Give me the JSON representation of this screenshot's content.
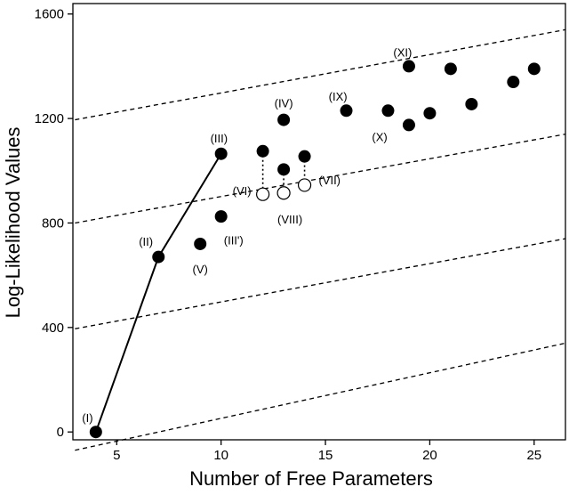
{
  "chart_data": {
    "type": "scatter",
    "xlabel": "Number of Free Parameters",
    "ylabel": "Log-Likelihood Values",
    "xlim": [
      2.9,
      26.5
    ],
    "ylim": [
      -30,
      1640
    ],
    "xticks": [
      5,
      10,
      15,
      20,
      25
    ],
    "yticks": [
      0,
      400,
      800,
      1200,
      1600
    ],
    "grid": false,
    "points_filled": [
      {
        "x": 4,
        "y": 0
      },
      {
        "x": 7,
        "y": 670
      },
      {
        "x": 9,
        "y": 720
      },
      {
        "x": 10,
        "y": 825
      },
      {
        "x": 10,
        "y": 1065
      },
      {
        "x": 12,
        "y": 1075
      },
      {
        "x": 13,
        "y": 1005
      },
      {
        "x": 13,
        "y": 1195
      },
      {
        "x": 14,
        "y": 1055
      },
      {
        "x": 16,
        "y": 1230
      },
      {
        "x": 18,
        "y": 1230
      },
      {
        "x": 19,
        "y": 1175
      },
      {
        "x": 19,
        "y": 1400
      },
      {
        "x": 20,
        "y": 1220
      },
      {
        "x": 21,
        "y": 1390
      },
      {
        "x": 22,
        "y": 1255
      },
      {
        "x": 24,
        "y": 1340
      },
      {
        "x": 25,
        "y": 1390
      }
    ],
    "points_open": [
      {
        "x": 12,
        "y": 910
      },
      {
        "x": 13,
        "y": 915
      },
      {
        "x": 14,
        "y": 945
      }
    ],
    "connectors": [
      {
        "x": 12,
        "y1": 1075,
        "y2": 910
      },
      {
        "x": 13,
        "y1": 1005,
        "y2": 915
      },
      {
        "x": 14,
        "y1": 1055,
        "y2": 945
      }
    ],
    "solid_line": [
      {
        "x": 4,
        "y": 0
      },
      {
        "x": 7,
        "y": 670
      },
      {
        "x": 10,
        "y": 1065
      }
    ],
    "dashed_lines": [
      {
        "x1": 3,
        "y1": -70,
        "x2": 26.5,
        "y2": 340
      },
      {
        "x1": 3,
        "y1": 395,
        "x2": 26.5,
        "y2": 740
      },
      {
        "x1": 3,
        "y1": 800,
        "x2": 26.5,
        "y2": 1140
      },
      {
        "x1": 3,
        "y1": 1195,
        "x2": 26.5,
        "y2": 1540
      }
    ],
    "annotations": [
      {
        "text": "(I)",
        "x": 3.6,
        "y": 55,
        "anchor": "middle"
      },
      {
        "text": "(II)",
        "x": 6.4,
        "y": 730,
        "anchor": "middle"
      },
      {
        "text": "(III)",
        "x": 9.9,
        "y": 1125,
        "anchor": "middle"
      },
      {
        "text": "(III')",
        "x": 10.6,
        "y": 735,
        "anchor": "middle"
      },
      {
        "text": "(IV)",
        "x": 13.0,
        "y": 1260,
        "anchor": "middle"
      },
      {
        "text": "(V)",
        "x": 9.0,
        "y": 625,
        "anchor": "middle"
      },
      {
        "text": "(VI)",
        "x": 11.0,
        "y": 925,
        "anchor": "middle"
      },
      {
        "text": "(VII)",
        "x": 15.2,
        "y": 965,
        "anchor": "middle"
      },
      {
        "text": "(VIII)",
        "x": 13.3,
        "y": 815,
        "anchor": "middle"
      },
      {
        "text": "(IX)",
        "x": 15.6,
        "y": 1285,
        "anchor": "middle"
      },
      {
        "text": "(X)",
        "x": 17.6,
        "y": 1130,
        "anchor": "middle"
      },
      {
        "text": "(XI)",
        "x": 18.7,
        "y": 1455,
        "anchor": "middle"
      }
    ]
  }
}
